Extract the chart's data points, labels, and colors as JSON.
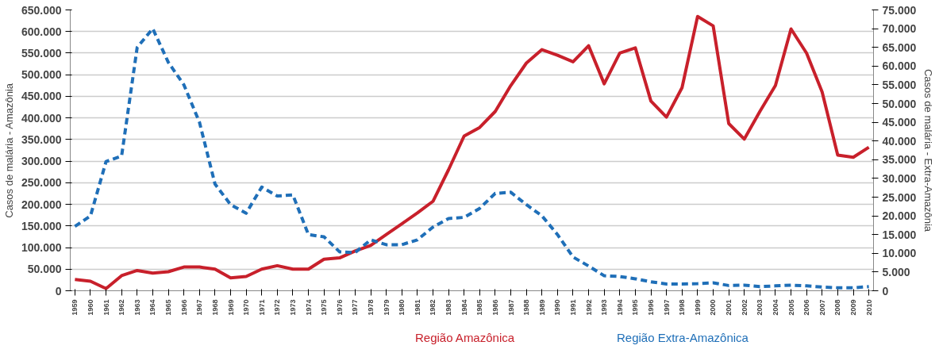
{
  "chart_data": {
    "type": "line",
    "ylabel": "Casos de malária - Amazônia",
    "y2label": "Casos de malária - Extra-Amazônia",
    "categories": [
      "1959",
      "1960",
      "1961",
      "1962",
      "1963",
      "1964",
      "1965",
      "1966",
      "1967",
      "1968",
      "1969",
      "1970",
      "1971",
      "1972",
      "1973",
      "1974",
      "1975",
      "1976",
      "1977",
      "1978",
      "1979",
      "1980",
      "1981",
      "1982",
      "1983",
      "1984",
      "1985",
      "1986",
      "1987",
      "1988",
      "1989",
      "1990",
      "1991",
      "1992",
      "1993",
      "1994",
      "1995",
      "1996",
      "1997",
      "1998",
      "1999",
      "2000",
      "2001",
      "2002",
      "2003",
      "2004",
      "2005",
      "2006",
      "2007",
      "2008",
      "2009",
      "2010"
    ],
    "series": [
      {
        "name": "Região Amazônica",
        "color": "#c8202b",
        "line_style": "solid",
        "values": [
          26000,
          22000,
          5000,
          35000,
          47000,
          41000,
          44000,
          55000,
          55000,
          50000,
          30000,
          33000,
          50000,
          58000,
          50000,
          50000,
          73000,
          76000,
          92000,
          105000,
          130000,
          155000,
          180000,
          207000,
          280000,
          358000,
          378000,
          415000,
          475000,
          527000,
          558000,
          545000,
          530000,
          567000,
          479000,
          550000,
          562000,
          439000,
          402000,
          470000,
          635000,
          613000,
          387000,
          351000,
          415000,
          475000,
          606000,
          550000,
          460000,
          314000,
          309000,
          332000
        ]
      },
      {
        "name": "Região Extra-Amazônica",
        "color": "#1f6fb8",
        "line_style": "dashed",
        "axis": "y2",
        "values": [
          17200,
          20000,
          34500,
          36000,
          65000,
          70000,
          61000,
          55000,
          45000,
          28500,
          23000,
          20700,
          27700,
          25300,
          25600,
          15000,
          14400,
          10400,
          10200,
          13600,
          12300,
          12300,
          13600,
          17000,
          19300,
          19600,
          22000,
          26000,
          26300,
          23000,
          20000,
          15000,
          9000,
          6600,
          4000,
          3800,
          3200,
          2400,
          1800,
          1800,
          1900,
          2100,
          1400,
          1500,
          1100,
          1300,
          1500,
          1300,
          1000,
          800,
          800,
          1100
        ]
      }
    ],
    "ylim": [
      0,
      650000
    ],
    "yticks": [
      {
        "value": 0,
        "label": "0"
      },
      {
        "value": 50000,
        "label": "50.000"
      },
      {
        "value": 100000,
        "label": "100.000"
      },
      {
        "value": 150000,
        "label": "150.000"
      },
      {
        "value": 200000,
        "label": "200.000"
      },
      {
        "value": 250000,
        "label": "250.000"
      },
      {
        "value": 300000,
        "label": "300.000"
      },
      {
        "value": 350000,
        "label": "350.000"
      },
      {
        "value": 400000,
        "label": "400.000"
      },
      {
        "value": 450000,
        "label": "450.000"
      },
      {
        "value": 500000,
        "label": "500.000"
      },
      {
        "value": 550000,
        "label": "550.000"
      },
      {
        "value": 600000,
        "label": "600.000"
      },
      {
        "value": 650000,
        "label": "650.000"
      }
    ],
    "y2lim": [
      0,
      75000
    ],
    "y2ticks": [
      {
        "value": 0,
        "label": "0"
      },
      {
        "value": 5000,
        "label": "5.000"
      },
      {
        "value": 10000,
        "label": "10.000"
      },
      {
        "value": 15000,
        "label": "15.000"
      },
      {
        "value": 20000,
        "label": "20.000"
      },
      {
        "value": 25000,
        "label": "25.000"
      },
      {
        "value": 30000,
        "label": "30.000"
      },
      {
        "value": 35000,
        "label": "35.000"
      },
      {
        "value": 40000,
        "label": "40.000"
      },
      {
        "value": 45000,
        "label": "45.000"
      },
      {
        "value": 50000,
        "label": "50.000"
      },
      {
        "value": 55000,
        "label": "55.000"
      },
      {
        "value": 60000,
        "label": "60.000"
      },
      {
        "value": 65000,
        "label": "65.000"
      },
      {
        "value": 70000,
        "label": "70.000"
      },
      {
        "value": 75000,
        "label": "75.000"
      }
    ],
    "grid": "y",
    "legend": "bottom",
    "marker": "none"
  }
}
